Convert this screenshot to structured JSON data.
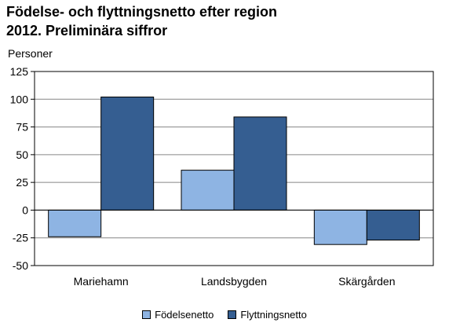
{
  "chart_data": {
    "type": "bar",
    "title_line1": "Födelse- och flyttningsnetto efter region",
    "title_line2": "2012. Preliminära siffror",
    "ylabel": "Personer",
    "categories": [
      "Mariehamn",
      "Landsbygden",
      "Skärgården"
    ],
    "series": [
      {
        "name": "Födelsenetto",
        "color": "#8eb4e3",
        "values": [
          -24,
          36,
          -31
        ]
      },
      {
        "name": "Flyttningsnetto",
        "color": "#355e91",
        "values": [
          102,
          84,
          -27
        ]
      }
    ],
    "ylim": [
      -50,
      125
    ],
    "yticks": [
      125,
      100,
      75,
      50,
      25,
      0,
      -25,
      -50
    ],
    "grid": true,
    "legend_position": "bottom"
  }
}
